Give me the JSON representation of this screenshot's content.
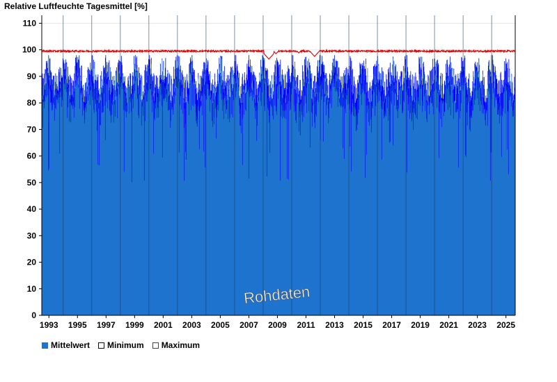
{
  "chart_data": {
    "type": "bar",
    "title": "Relative Luftfeuchte Tagesmittel [%]",
    "ylim": [
      0,
      113
    ],
    "yticks": [
      0,
      10,
      20,
      30,
      40,
      50,
      60,
      70,
      80,
      90,
      100,
      110
    ],
    "xlim": [
      1992.5,
      2025.65
    ],
    "xticks": [
      "1993",
      "1995",
      "1997",
      "1999",
      "2001",
      "2003",
      "2005",
      "2007",
      "2009",
      "2011",
      "2013",
      "2015",
      "2017",
      "2019",
      "2021",
      "2023",
      "2025"
    ],
    "vertical_gridlines": [
      1994,
      1996,
      1998,
      2000,
      2002,
      2004,
      2006,
      2008,
      2010,
      2012,
      2014,
      2016,
      2018,
      2020,
      2022,
      2024
    ],
    "watermark": "Rohdaten",
    "series": [
      {
        "name": "Mittelwert",
        "color": "#1E73CF",
        "typical_range": [
          80,
          98
        ]
      },
      {
        "name": "Minimum",
        "color": "#0000FF",
        "typical_range": [
          50,
          98
        ]
      },
      {
        "name": "Maximum",
        "color": "#E00000",
        "typical_value": 99.5,
        "dips": [
          {
            "x": 2008.4,
            "value": 96.5
          },
          {
            "x": 2008.9,
            "value": 98.5
          },
          {
            "x": 2010.5,
            "value": 98.8
          },
          {
            "x": 2011.6,
            "value": 97.5
          }
        ]
      }
    ],
    "legend_placement": "bottom-left"
  }
}
